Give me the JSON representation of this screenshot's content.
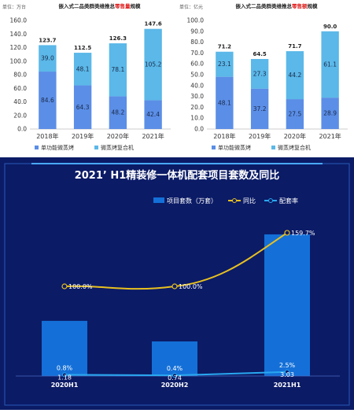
{
  "chart_data": [
    {
      "type": "bar",
      "title_prefix": "嵌入式二品类群类维推总",
      "title_highlight": "零售量",
      "title_suffix": "规模",
      "unit": "单位：万台",
      "categories": [
        "2018年",
        "2019年",
        "2020年",
        "2021年"
      ],
      "series": [
        {
          "name": "单功能微蒸烤",
          "values": [
            84.6,
            64.3,
            48.2,
            42.4
          ]
        },
        {
          "name": "微蒸烤复合机",
          "values": [
            39.0,
            48.1,
            78.1,
            105.2
          ]
        }
      ],
      "totals": [
        123.7,
        112.5,
        126.3,
        147.6
      ],
      "value_labels": [
        [
          "84.6",
          "64.3",
          "48.2",
          "42.4"
        ],
        [
          "39.0",
          "48.1",
          "78.1",
          "105.2"
        ]
      ],
      "total_labels": [
        "123.7",
        "112.5",
        "126.3",
        "147.6"
      ],
      "yticks": [
        "0.0",
        "20.0",
        "40.0",
        "60.0",
        "80.0",
        "100.0",
        "120.0",
        "140.0",
        "160.0"
      ],
      "ylim": [
        0,
        160
      ],
      "colors": {
        "series": [
          "#5b8ee6",
          "#5bb8e8"
        ],
        "title_highlight": "#e02020"
      },
      "legend_position": "bottom"
    },
    {
      "type": "bar",
      "title_prefix": "嵌入式二品类群类维推总",
      "title_highlight": "零售额",
      "title_suffix": "规模",
      "unit": "单位：亿元",
      "categories": [
        "2018年",
        "2019年",
        "2020年",
        "2021年"
      ],
      "series": [
        {
          "name": "单功能微蒸烤",
          "values": [
            48.1,
            37.2,
            27.5,
            28.9
          ]
        },
        {
          "name": "微蒸烤复合机",
          "values": [
            23.1,
            27.3,
            44.2,
            61.1
          ]
        }
      ],
      "totals": [
        71.2,
        64.5,
        71.7,
        90.0
      ],
      "value_labels": [
        [
          "48.1",
          "37.2",
          "27.5",
          "28.9"
        ],
        [
          "23.1",
          "27.3",
          "44.2",
          "61.1"
        ]
      ],
      "total_labels": [
        "71.2",
        "64.5",
        "71.7",
        "90.0"
      ],
      "yticks": [
        "0.0",
        "10.0",
        "20.0",
        "30.0",
        "40.0",
        "50.0",
        "60.0",
        "70.0",
        "80.0",
        "90.0",
        "100.0"
      ],
      "ylim": [
        0,
        100
      ],
      "colors": {
        "series": [
          "#5b8ee6",
          "#5bb8e8"
        ],
        "title_highlight": "#e02020"
      },
      "legend_position": "bottom"
    },
    {
      "type": "bar-line",
      "title": "2021’ H1精装修一体机配套项目套数及同比",
      "categories": [
        "2020H1",
        "2020H2",
        "2021H1"
      ],
      "series": [
        {
          "name": "项目套数（万套）",
          "type": "bar",
          "values": [
            1.18,
            0.74,
            3.03
          ]
        },
        {
          "name": "同比",
          "type": "line",
          "values": [
            100.0,
            100.0,
            159.7
          ]
        },
        {
          "name": "配套率",
          "type": "line",
          "values": [
            0.8,
            0.4,
            2.5
          ]
        }
      ],
      "labels": {
        "bar": [
          "1.18",
          "0.74",
          "3.03"
        ],
        "yoy": [
          "100.0%",
          "100.0%",
          "159.7%"
        ],
        "rate": [
          "0.8%",
          "0.4%",
          "2.5%"
        ]
      },
      "colors": {
        "bar": "#1470d8",
        "yoy": "#e8c020",
        "rate": "#29a8f0",
        "background": "#0b1b66"
      },
      "legend_position": "top"
    }
  ]
}
